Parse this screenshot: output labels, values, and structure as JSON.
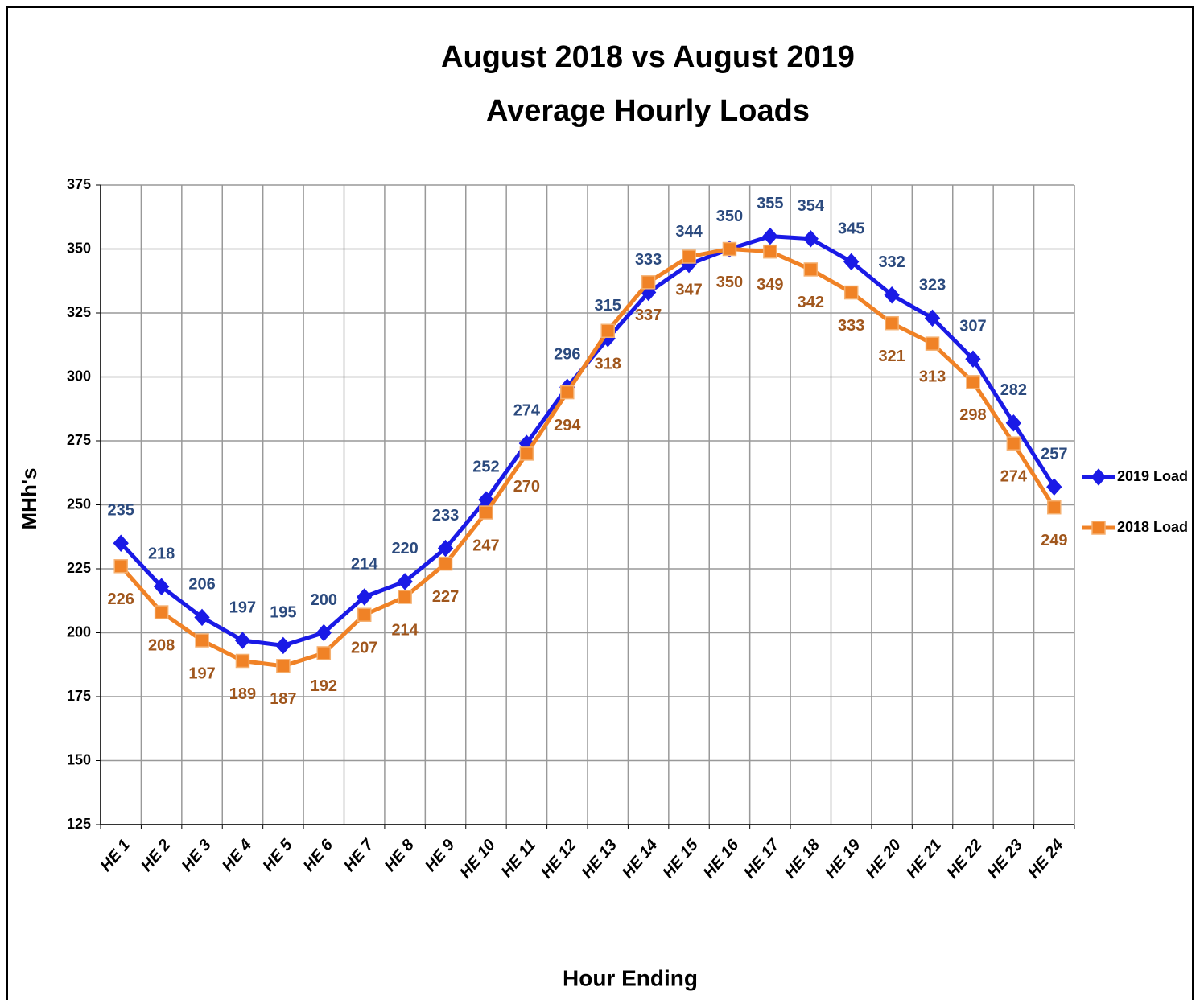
{
  "chart_data": {
    "type": "line",
    "title": "August 2018 vs August 2019",
    "subtitle": "Average Hourly Loads",
    "y_label": "MHh's",
    "x_label": "Hour Ending",
    "categories": [
      "HE 1",
      "HE 2",
      "HE 3",
      "HE 4",
      "HE 5",
      "HE 6",
      "HE 7",
      "HE 8",
      "HE 9",
      "HE 10",
      "HE 11",
      "HE 12",
      "HE 13",
      "HE 14",
      "HE 15",
      "HE 16",
      "HE 17",
      "HE 18",
      "HE 19",
      "HE 20",
      "HE 21",
      "HE 22",
      "HE 23",
      "HE 24"
    ],
    "series": [
      {
        "name": "2019 Load",
        "color": "#1a1ae6",
        "label_color": "#2b4a7e",
        "marker": "diamond",
        "values": [
          235,
          218,
          206,
          197,
          195,
          200,
          214,
          220,
          233,
          252,
          274,
          296,
          315,
          333,
          344,
          350,
          355,
          354,
          345,
          332,
          323,
          307,
          282,
          257
        ]
      },
      {
        "name": "2018 Load",
        "color": "#f08226",
        "label_color": "#a0561c",
        "marker": "square",
        "values": [
          226,
          208,
          197,
          189,
          187,
          192,
          207,
          214,
          227,
          247,
          270,
          294,
          318,
          337,
          347,
          350,
          349,
          342,
          333,
          321,
          313,
          298,
          274,
          249
        ]
      }
    ],
    "ylim": [
      125,
      375
    ],
    "yticks": [
      125,
      150,
      175,
      200,
      225,
      250,
      275,
      300,
      325,
      350,
      375
    ],
    "grid": true,
    "legend": "right"
  }
}
